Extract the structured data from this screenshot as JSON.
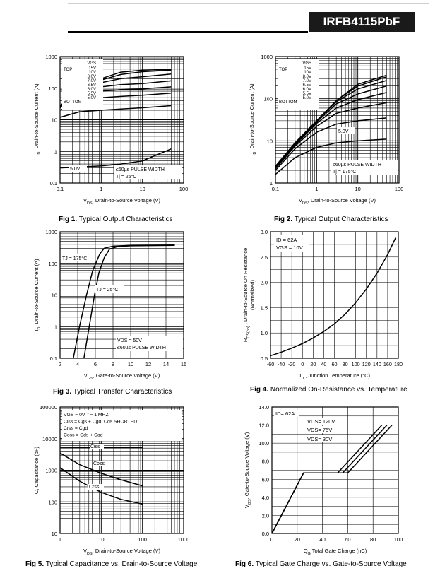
{
  "header": {
    "part_number": "IRFB4115PbF"
  },
  "charts": [
    {
      "id": "fig1",
      "caption_num": "Fig 1.",
      "caption_text": "Typical Output Characteristics",
      "type": "line",
      "xscale": "log",
      "yscale": "log",
      "xlim": [
        0.1,
        100
      ],
      "ylim": [
        0.1,
        1000
      ],
      "x_ticks": [
        "0.1",
        "1",
        "10",
        "100"
      ],
      "y_ticks": [
        "0.1",
        "1",
        "10",
        "100",
        "1000"
      ],
      "ylabel_sym": "I",
      "ylabel_sub": "D",
      "ylabel_text": ", Drain-to-Source Current (A)",
      "xlabel_sym": "V",
      "xlabel_sub": "DS",
      "xlabel_text": ", Drain-to-Source Voltage (V)",
      "vgs_header": "VGS",
      "vgs_top": "TOP",
      "vgs_bottom": "BOTTOM",
      "vgs_list": [
        "15V",
        "10V",
        "8.0V",
        "7.0V",
        "6.5V",
        "6.0V",
        "5.5V",
        "5.0V"
      ],
      "annotations": [
        "5.0V",
        "≤60µs PULSE WIDTH",
        "Tj = 25°C"
      ],
      "series": [
        {
          "name": "15V",
          "x": [
            0.1,
            0.3,
            1,
            3,
            10,
            50
          ],
          "y": [
            28,
            80,
            200,
            320,
            370,
            390
          ]
        },
        {
          "name": "10V",
          "x": [
            0.1,
            0.3,
            1,
            3,
            10,
            50
          ],
          "y": [
            28,
            80,
            180,
            270,
            330,
            370
          ]
        },
        {
          "name": "8.0V",
          "x": [
            0.1,
            0.3,
            1,
            3,
            10,
            50
          ],
          "y": [
            28,
            75,
            150,
            200,
            230,
            280
          ]
        },
        {
          "name": "7.0V",
          "x": [
            0.1,
            0.3,
            1,
            3,
            10,
            50
          ],
          "y": [
            26,
            65,
            110,
            130,
            140,
            170
          ]
        },
        {
          "name": "6.5V",
          "x": [
            0.1,
            0.3,
            1,
            3,
            10,
            50
          ],
          "y": [
            24,
            55,
            80,
            90,
            95,
            110
          ]
        },
        {
          "name": "6.0V",
          "x": [
            0.1,
            0.3,
            1,
            3,
            10,
            50
          ],
          "y": [
            20,
            38,
            50,
            55,
            60,
            70
          ]
        },
        {
          "name": "5.5V",
          "x": [
            0.1,
            0.3,
            1,
            3,
            10,
            50
          ],
          "y": [
            12,
            18,
            20,
            22,
            24,
            28
          ]
        },
        {
          "name": "5.0V",
          "x": [
            0.1,
            0.3,
            1,
            3,
            10,
            50
          ],
          "y": [
            0.3,
            0.32,
            0.35,
            0.4,
            0.5,
            1.2
          ]
        }
      ]
    },
    {
      "id": "fig2",
      "caption_num": "Fig 2.",
      "caption_text": "Typical Output Characteristics",
      "type": "line",
      "xscale": "log",
      "yscale": "log",
      "xlim": [
        0.1,
        100
      ],
      "ylim": [
        1,
        1000
      ],
      "x_ticks": [
        "0.1",
        "1",
        "10",
        "100"
      ],
      "y_ticks": [
        "1",
        "10",
        "100",
        "1000"
      ],
      "ylabel_sym": "I",
      "ylabel_sub": "D",
      "ylabel_text": ", Drain-to-Source Current (A)",
      "xlabel_sym": "V",
      "xlabel_sub": "DS",
      "xlabel_text": ", Drain-to-Source Voltage (V)",
      "vgs_header": "VGS",
      "vgs_top": "TOP",
      "vgs_bottom": "BOTTOM",
      "vgs_list": [
        "15V",
        "10V",
        "8.0V",
        "7.0V",
        "6.5V",
        "6.0V",
        "5.5V",
        "5.0V"
      ],
      "annotations": [
        "5.0V",
        "≤60µs PULSE WIDTH",
        "Tj = 175°C"
      ],
      "series": [
        {
          "name": "15V",
          "x": [
            0.1,
            0.3,
            1,
            3,
            10,
            50
          ],
          "y": [
            2.5,
            9,
            30,
            90,
            220,
            360
          ]
        },
        {
          "name": "10V",
          "x": [
            0.1,
            0.3,
            1,
            3,
            10,
            50
          ],
          "y": [
            2.5,
            9,
            30,
            90,
            200,
            330
          ]
        },
        {
          "name": "8.0V",
          "x": [
            0.1,
            0.3,
            1,
            3,
            10,
            50
          ],
          "y": [
            2.5,
            9,
            30,
            85,
            170,
            270
          ]
        },
        {
          "name": "7.0V",
          "x": [
            0.1,
            0.3,
            1,
            3,
            10,
            50
          ],
          "y": [
            2.4,
            8.5,
            28,
            75,
            130,
            200
          ]
        },
        {
          "name": "6.5V",
          "x": [
            0.1,
            0.3,
            1,
            3,
            10,
            50
          ],
          "y": [
            2.3,
            8,
            26,
            60,
            95,
            140
          ]
        },
        {
          "name": "6.0V",
          "x": [
            0.1,
            0.3,
            1,
            3,
            10,
            50
          ],
          "y": [
            2.2,
            7.5,
            22,
            45,
            60,
            80
          ]
        },
        {
          "name": "5.5V",
          "x": [
            0.1,
            0.3,
            1,
            3,
            10,
            50
          ],
          "y": [
            2,
            6.5,
            16,
            25,
            30,
            35
          ]
        },
        {
          "name": "5.0V",
          "x": [
            0.1,
            0.3,
            1,
            3,
            10,
            50
          ],
          "y": [
            1.6,
            4,
            7,
            9,
            10,
            11
          ]
        }
      ]
    },
    {
      "id": "fig3",
      "caption_num": "Fig 3.",
      "caption_text": "Typical Transfer Characteristics",
      "type": "line",
      "xscale": "linear",
      "yscale": "log",
      "xlim": [
        2,
        16
      ],
      "ylim": [
        0.1,
        1000
      ],
      "x_ticks": [
        "2",
        "4",
        "6",
        "8",
        "10",
        "12",
        "14",
        "16"
      ],
      "y_ticks": [
        "0.1",
        "1",
        "10",
        "100",
        "1000"
      ],
      "ylabel_sym": "I",
      "ylabel_sub": "D",
      "ylabel_text": ", Drain-to-Source Current (A)",
      "xlabel_sym": "V",
      "xlabel_sub": "GS",
      "xlabel_text": ", Gate-to-Source Voltage (V)",
      "annotations": [
        "TJ = 175°C",
        "TJ = 25°C",
        "VDS = 50V",
        "≤60µs PULSE WIDTH"
      ],
      "series": [
        {
          "name": "TJ = 175°C",
          "x": [
            3.5,
            4.2,
            5,
            5.7,
            6.5,
            7,
            8,
            10,
            15
          ],
          "y": [
            0.1,
            1,
            10,
            60,
            200,
            300,
            350,
            370,
            380
          ]
        },
        {
          "name": "TJ = 25°C",
          "x": [
            4.7,
            5.3,
            5.9,
            6.4,
            7,
            7.6,
            8.5,
            10,
            15
          ],
          "y": [
            0.1,
            1,
            10,
            50,
            150,
            280,
            340,
            360,
            370
          ]
        }
      ]
    },
    {
      "id": "fig4",
      "caption_num": "Fig 4.",
      "caption_text": "Normalized On-Resistance vs. Temperature",
      "type": "line",
      "xscale": "linear",
      "yscale": "linear",
      "xlim": [
        -60,
        180
      ],
      "ylim": [
        0.5,
        3.0
      ],
      "x_ticks": [
        "-60",
        "-40",
        "-20",
        "0",
        "20",
        "40",
        "60",
        "80",
        "100",
        "120",
        "140",
        "160",
        "180"
      ],
      "y_ticks": [
        "0.5",
        "1.0",
        "1.5",
        "2.0",
        "2.5",
        "3.0"
      ],
      "ylabel_sym": "R",
      "ylabel_sub": "DS(on)",
      "ylabel_text": " , Drain-to-Source On Resistance",
      "ylabel2": "(Normalized)",
      "xlabel_sym": "T",
      "xlabel_sub": "J",
      "xlabel_text": " , Junction Temperature (°C)",
      "annotations": [
        "ID = 62A",
        "VGS = 10V"
      ],
      "series": [
        {
          "name": "ID = 62A",
          "x": [
            -60,
            -40,
            -20,
            0,
            20,
            40,
            60,
            80,
            100,
            120,
            140,
            160,
            175
          ],
          "y": [
            0.55,
            0.62,
            0.7,
            0.79,
            0.9,
            1.03,
            1.18,
            1.37,
            1.6,
            1.87,
            2.18,
            2.55,
            2.88
          ]
        }
      ]
    },
    {
      "id": "fig5",
      "caption_num": "Fig 5.",
      "caption_text": "Typical Capacitance vs. Drain-to-Source Voltage",
      "type": "line",
      "xscale": "log",
      "yscale": "log",
      "xlim": [
        1,
        1000
      ],
      "ylim": [
        10,
        100000
      ],
      "x_ticks": [
        "1",
        "10",
        "100",
        "1000"
      ],
      "y_ticks": [
        "10",
        "100",
        "1000",
        "10000",
        "100000"
      ],
      "ylabel_sym": "C",
      "ylabel_sub": "",
      "ylabel_text": ", Capacitance (pF)",
      "xlabel_sym": "V",
      "xlabel_sub": "DS",
      "xlabel_text": ", Drain-to-Source Voltage (V)",
      "legend_lines": [
        "VGS = 0V,     f = 1 MHZ",
        "Ciss = Cgs + Cgd, Cds SHORTED",
        "Crss = Cgd",
        "Coss = Cds + Cgd"
      ],
      "annotations": [
        "Ciss",
        "Coss",
        "Crss"
      ],
      "series": [
        {
          "name": "Ciss",
          "x": [
            1,
            3,
            10,
            30,
            100
          ],
          "y": [
            5300,
            5250,
            5200,
            5150,
            5100
          ]
        },
        {
          "name": "Coss",
          "x": [
            1,
            3,
            10,
            30,
            100
          ],
          "y": [
            3500,
            1500,
            800,
            500,
            320
          ]
        },
        {
          "name": "Crss",
          "x": [
            1,
            3,
            10,
            30,
            100
          ],
          "y": [
            1200,
            450,
            200,
            120,
            85
          ]
        }
      ]
    },
    {
      "id": "fig6",
      "caption_num": "Fig 6.",
      "caption_text": "Typical Gate Charge vs. Gate-to-Source Voltage",
      "type": "line",
      "xscale": "linear",
      "yscale": "linear",
      "xlim": [
        0,
        100
      ],
      "ylim": [
        0,
        14
      ],
      "x_ticks": [
        "0",
        "20",
        "40",
        "60",
        "80",
        "100"
      ],
      "y_ticks": [
        "0.0",
        "2.0",
        "4.0",
        "6.0",
        "8.0",
        "10.0",
        "12.0",
        "14.0"
      ],
      "ylabel_sym": "V",
      "ylabel_sub": "GS",
      "ylabel_text": ", Gate-to-Source Voltage (V)",
      "xlabel_sym": "Q",
      "xlabel_sub": "G",
      "xlabel_text": " Total Gate Charge (nC)",
      "annotations": [
        "ID= 62A",
        "VDS= 120V",
        "VDS= 75V",
        "VDS= 30V"
      ],
      "series": [
        {
          "name": "VDS= 120V",
          "x": [
            0,
            25,
            60,
            95
          ],
          "y": [
            0,
            6.7,
            6.7,
            12
          ]
        },
        {
          "name": "VDS= 75V",
          "x": [
            0,
            25,
            56,
            91
          ],
          "y": [
            0,
            6.7,
            6.7,
            12
          ]
        },
        {
          "name": "VDS= 30V",
          "x": [
            0,
            25,
            52,
            87
          ],
          "y": [
            0,
            6.7,
            6.7,
            12
          ]
        }
      ]
    }
  ]
}
